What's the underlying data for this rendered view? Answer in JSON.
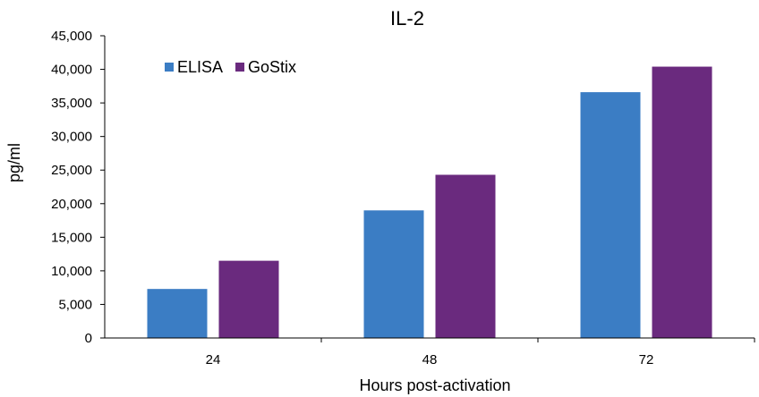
{
  "chart_data": {
    "type": "bar",
    "title": "IL-2",
    "xlabel": "Hours post-activation",
    "ylabel": "pg/ml",
    "categories": [
      "24",
      "48",
      "72"
    ],
    "series": [
      {
        "name": "ELISA",
        "color": "#3B7DC4",
        "values": [
          7300,
          19000,
          36600
        ]
      },
      {
        "name": "GoStix",
        "color": "#6A2A7E",
        "values": [
          11500,
          24300,
          40400
        ]
      }
    ],
    "ylim": [
      0,
      45000
    ],
    "yticks": [
      "0",
      "5,000",
      "10,000",
      "15,000",
      "20,000",
      "25,000",
      "30,000",
      "35,000",
      "40,000",
      "45,000"
    ],
    "grid": false,
    "legend_position": "top-left"
  }
}
